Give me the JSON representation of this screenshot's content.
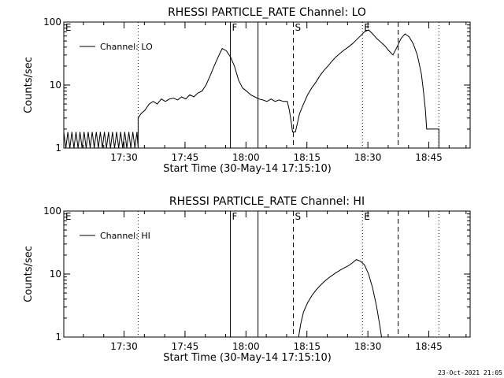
{
  "footer": {
    "timestamp": "23-Oct-2021 21:05"
  },
  "chart_data": [
    {
      "type": "line",
      "title": "RHESSI PARTICLE_RATE Channel: LO",
      "xlabel": "Start Time (30-May-14 17:15:10)",
      "ylabel": "Counts/sec",
      "yscale": "log",
      "ylim": [
        1,
        100
      ],
      "xlim_minutes": [
        0,
        100
      ],
      "xtick_labels": [
        "17:30",
        "17:45",
        "18:00",
        "18:15",
        "18:30",
        "18:45"
      ],
      "ytick_labels": [
        "1",
        "10",
        "100"
      ],
      "grid": false,
      "legend": "top-left",
      "flags": [
        {
          "label": "E",
          "t": 0,
          "style": "dotted"
        },
        {
          "label": "F",
          "t": 41,
          "style": "solid"
        },
        {
          "label": "S",
          "t": 56.5,
          "style": "dashed"
        },
        {
          "label": "E",
          "t": 73.5,
          "style": "dotted"
        }
      ],
      "extra_markers": [
        {
          "t": 18.3,
          "style": "dotted"
        },
        {
          "t": 47.8,
          "style": "solid"
        },
        {
          "t": 82.3,
          "style": "dashed"
        },
        {
          "t": 92.3,
          "style": "dotted"
        }
      ],
      "series": [
        {
          "name": "Channel: LO",
          "points": [
            [
              0,
              1.8
            ],
            [
              0.5,
              1
            ],
            [
              1,
              1.8
            ],
            [
              1.5,
              1
            ],
            [
              2,
              1.8
            ],
            [
              2.5,
              1
            ],
            [
              3,
              1.8
            ],
            [
              3.5,
              1
            ],
            [
              4,
              1.8
            ],
            [
              4.5,
              1
            ],
            [
              5,
              1.8
            ],
            [
              5.5,
              1
            ],
            [
              6,
              1.8
            ],
            [
              6.5,
              1
            ],
            [
              7,
              1.8
            ],
            [
              7.5,
              1
            ],
            [
              8,
              1.8
            ],
            [
              8.5,
              1
            ],
            [
              9,
              1.8
            ],
            [
              9.5,
              1
            ],
            [
              10,
              1.8
            ],
            [
              10.5,
              1
            ],
            [
              11,
              1.8
            ],
            [
              11.5,
              1
            ],
            [
              12,
              1.8
            ],
            [
              12.5,
              1
            ],
            [
              13,
              1.8
            ],
            [
              13.5,
              1
            ],
            [
              14,
              1.8
            ],
            [
              14.5,
              1
            ],
            [
              15,
              1.8
            ],
            [
              15.5,
              1
            ],
            [
              16,
              1.8
            ],
            [
              16.5,
              1
            ],
            [
              17,
              1.8
            ],
            [
              17.5,
              1
            ],
            [
              18,
              1.8
            ],
            [
              18.3,
              1
            ],
            [
              18.3,
              3
            ],
            [
              19,
              3.5
            ],
            [
              20,
              4
            ],
            [
              21,
              5
            ],
            [
              22,
              5.5
            ],
            [
              23,
              5
            ],
            [
              24,
              6
            ],
            [
              25,
              5.5
            ],
            [
              26,
              6
            ],
            [
              27,
              6.2
            ],
            [
              28,
              5.8
            ],
            [
              29,
              6.5
            ],
            [
              30,
              6
            ],
            [
              31,
              7
            ],
            [
              32,
              6.5
            ],
            [
              33,
              7.5
            ],
            [
              34,
              8
            ],
            [
              35,
              10
            ],
            [
              36,
              14
            ],
            [
              37,
              20
            ],
            [
              38,
              28
            ],
            [
              39,
              38
            ],
            [
              40,
              35
            ],
            [
              41,
              28
            ],
            [
              42,
              20
            ],
            [
              43,
              12
            ],
            [
              44,
              9
            ],
            [
              45,
              8
            ],
            [
              46,
              7
            ],
            [
              47,
              6.5
            ],
            [
              48,
              6
            ],
            [
              49,
              5.8
            ],
            [
              50,
              5.5
            ],
            [
              51,
              6
            ],
            [
              52,
              5.5
            ],
            [
              53,
              5.8
            ],
            [
              54,
              5.5
            ],
            [
              55,
              5.5
            ],
            [
              55.5,
              4
            ],
            [
              56,
              2.5
            ],
            [
              56.3,
              1.8
            ],
            [
              57,
              1.8
            ],
            [
              57.5,
              2.5
            ],
            [
              58,
              3.5
            ],
            [
              59,
              5
            ],
            [
              60,
              7
            ],
            [
              61,
              9
            ],
            [
              62,
              11
            ],
            [
              63,
              14
            ],
            [
              64,
              17
            ],
            [
              65,
              20
            ],
            [
              66,
              24
            ],
            [
              67,
              28
            ],
            [
              68,
              32
            ],
            [
              69,
              36
            ],
            [
              70,
              40
            ],
            [
              71,
              45
            ],
            [
              72,
              52
            ],
            [
              73,
              60
            ],
            [
              74,
              70
            ],
            [
              75,
              75
            ],
            [
              76,
              65
            ],
            [
              77,
              55
            ],
            [
              78,
              48
            ],
            [
              79,
              42
            ],
            [
              80,
              35
            ],
            [
              81,
              30
            ],
            [
              82,
              40
            ],
            [
              83,
              55
            ],
            [
              84,
              65
            ],
            [
              85,
              58
            ],
            [
              86,
              45
            ],
            [
              87,
              30
            ],
            [
              88,
              15
            ],
            [
              88.5,
              8
            ],
            [
              89,
              4
            ],
            [
              89.3,
              2
            ],
            [
              92.3,
              2
            ],
            [
              92.3,
              1
            ]
          ]
        }
      ]
    },
    {
      "type": "line",
      "title": "RHESSI PARTICLE_RATE Channel: HI",
      "xlabel": "Start Time (30-May-14 17:15:10)",
      "ylabel": "Counts/sec",
      "yscale": "log",
      "ylim": [
        1,
        100
      ],
      "xlim_minutes": [
        0,
        100
      ],
      "xtick_labels": [
        "17:30",
        "17:45",
        "18:00",
        "18:15",
        "18:30",
        "18:45"
      ],
      "ytick_labels": [
        "1",
        "10",
        "100"
      ],
      "grid": false,
      "legend": "top-left",
      "flags": [
        {
          "label": "E",
          "t": 0,
          "style": "dotted"
        },
        {
          "label": "F",
          "t": 41,
          "style": "solid"
        },
        {
          "label": "S",
          "t": 56.5,
          "style": "dashed"
        },
        {
          "label": "E",
          "t": 73.5,
          "style": "dotted"
        }
      ],
      "extra_markers": [
        {
          "t": 18.3,
          "style": "dotted"
        },
        {
          "t": 47.8,
          "style": "solid"
        },
        {
          "t": 82.3,
          "style": "dashed"
        },
        {
          "t": 92.3,
          "style": "dotted"
        }
      ],
      "series": [
        {
          "name": "Channel: HI",
          "points": [
            [
              57.8,
              1
            ],
            [
              58.3,
              1.6
            ],
            [
              59,
              2.5
            ],
            [
              60,
              3.5
            ],
            [
              61,
              4.5
            ],
            [
              62,
              5.5
            ],
            [
              63,
              6.5
            ],
            [
              64,
              7.5
            ],
            [
              65,
              8.5
            ],
            [
              66,
              9.5
            ],
            [
              67,
              10.5
            ],
            [
              68,
              11.5
            ],
            [
              69,
              12.5
            ],
            [
              70,
              13.5
            ],
            [
              71,
              15
            ],
            [
              72,
              17
            ],
            [
              73,
              16
            ],
            [
              74,
              14
            ],
            [
              75,
              10
            ],
            [
              76,
              6
            ],
            [
              77,
              3
            ],
            [
              77.8,
              1.5
            ],
            [
              78.2,
              1
            ]
          ]
        }
      ]
    }
  ]
}
